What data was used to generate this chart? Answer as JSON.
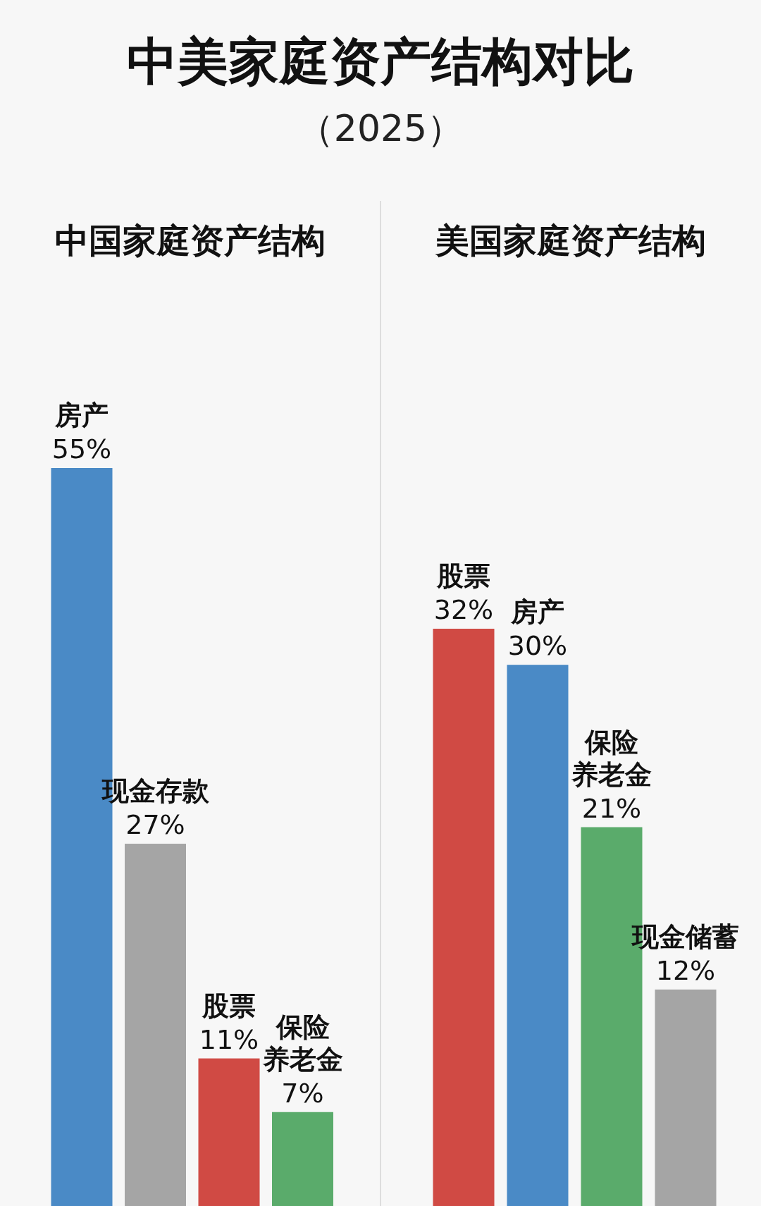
{
  "chart_data": [
    {
      "type": "other",
      "title": "中美家庭资产结构对比",
      "subtitle": "（2025）"
    },
    {
      "type": "bar",
      "title": "中国家庭资产结构",
      "categories": [
        "房产",
        "现金存款",
        "股票",
        "保险养老金"
      ],
      "values": [
        55,
        27,
        11,
        7
      ],
      "colors": [
        "#4a8ac6",
        "#a5a5a5",
        "#d04a44",
        "#5aab6b"
      ],
      "value_labels": [
        "55%",
        "27%",
        "11%",
        "7%"
      ]
    },
    {
      "type": "bar",
      "title": "美国家庭资产结构",
      "categories": [
        "股票",
        "房产",
        "保险养老金",
        "现金储蓄"
      ],
      "values": [
        32,
        30,
        21,
        12
      ],
      "colors": [
        "#d04a44",
        "#4a8ac6",
        "#5aab6b",
        "#a5a5a5"
      ],
      "value_labels": [
        "32%",
        "30%",
        "21%",
        "12%"
      ]
    }
  ]
}
